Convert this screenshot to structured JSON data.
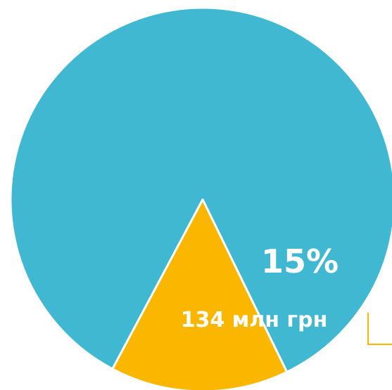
{
  "chart_data": {
    "type": "pie",
    "slices": [
      {
        "value": 85,
        "color": "#41B8D2"
      },
      {
        "value": 15,
        "color": "#FBB600",
        "percent_label": "15%",
        "value_label": "134 млн грн"
      }
    ],
    "title": "",
    "legend": "none",
    "leader_line_color": "#FBB600"
  }
}
